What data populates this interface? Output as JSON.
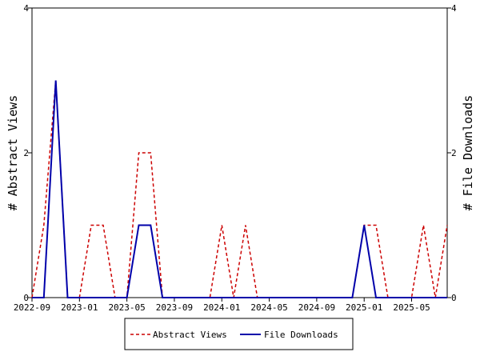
{
  "chart_data": {
    "type": "line",
    "x": [
      "2022-09",
      "2022-10",
      "2022-11",
      "2022-12",
      "2023-01",
      "2023-02",
      "2023-03",
      "2023-04",
      "2023-05",
      "2023-06",
      "2023-07",
      "2023-08",
      "2023-09",
      "2023-10",
      "2023-11",
      "2023-12",
      "2024-01",
      "2024-02",
      "2024-03",
      "2024-04",
      "2024-05",
      "2024-06",
      "2024-07",
      "2024-08",
      "2024-09",
      "2024-10",
      "2024-11",
      "2024-12",
      "2025-01",
      "2025-02",
      "2025-03",
      "2025-04",
      "2025-05",
      "2025-06",
      "2025-07",
      "2025-08"
    ],
    "x_tick_labels": [
      "2022-09",
      "2023-01",
      "2023-05",
      "2023-09",
      "2024-01",
      "2024-05",
      "2024-09",
      "2025-01",
      "2025-05"
    ],
    "ylabel_left": "# Abstract Views",
    "ylabel_right": "# File Downloads",
    "ylim": [
      0,
      4
    ],
    "yticks": [
      "0",
      "2",
      "4"
    ],
    "series": [
      {
        "name": "Abstract Views",
        "color": "#cc0000",
        "style": "dashed",
        "axis": "left",
        "values": [
          0,
          1,
          3,
          0,
          0,
          1,
          1,
          0,
          0,
          2,
          2,
          0,
          0,
          0,
          0,
          0,
          1,
          0,
          1,
          0,
          0,
          0,
          0,
          0,
          0,
          0,
          0,
          0,
          1,
          1,
          0,
          0,
          0,
          1,
          0,
          1
        ]
      },
      {
        "name": "File Downloads",
        "color": "#0000aa",
        "style": "solid",
        "axis": "right",
        "values": [
          0,
          0,
          3,
          0,
          0,
          0,
          0,
          0,
          0,
          1,
          1,
          0,
          0,
          0,
          0,
          0,
          0,
          0,
          0,
          0,
          0,
          0,
          0,
          0,
          0,
          0,
          0,
          0,
          1,
          0,
          0,
          0,
          0,
          0,
          0,
          0
        ]
      }
    ],
    "grid": false,
    "legend_position": "bottom"
  }
}
